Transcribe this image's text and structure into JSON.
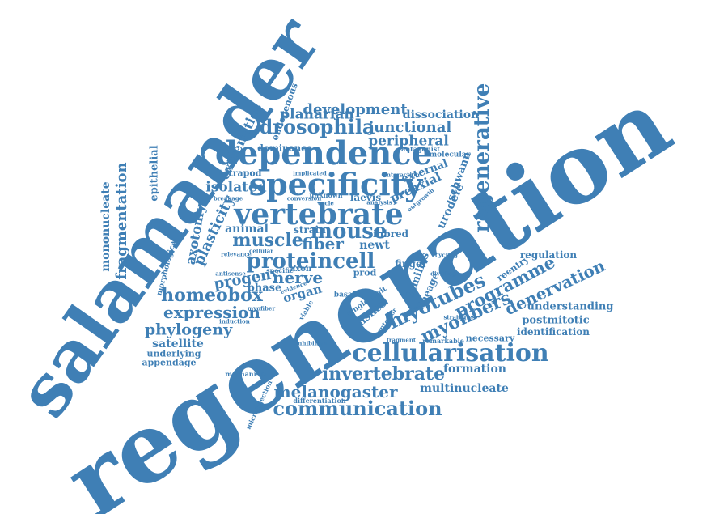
{
  "word_cloud": {
    "accent_color": "#3f7fb5",
    "words": [
      {
        "key": "regeneration",
        "text": "regeneration"
      },
      {
        "key": "salamander",
        "text": "salamander"
      },
      {
        "key": "dependence",
        "text": "dependence"
      },
      {
        "key": "specificity",
        "text": "specificity"
      },
      {
        "key": "vertebrate",
        "text": "vertebrate"
      },
      {
        "key": "cellularisation",
        "text": "cellularisation"
      },
      {
        "key": "regenerative",
        "text": "regenerative"
      },
      {
        "key": "communication",
        "text": "communication"
      },
      {
        "key": "invertebrate",
        "text": "invertebrate"
      },
      {
        "key": "melanogaster",
        "text": "melanogaster"
      },
      {
        "key": "drosophila",
        "text": "drosophila"
      },
      {
        "key": "development",
        "text": "development"
      },
      {
        "key": "planarian",
        "text": "planarian"
      },
      {
        "key": "junctional",
        "text": "junctional"
      },
      {
        "key": "dissociation",
        "text": "dissociation"
      },
      {
        "key": "peripheral",
        "text": "peripheral"
      },
      {
        "key": "mouse",
        "text": "mouse"
      },
      {
        "key": "muscle",
        "text": "muscle"
      },
      {
        "key": "fiber",
        "text": "fiber"
      },
      {
        "key": "proteincell",
        "text": "proteincell"
      },
      {
        "key": "nerve",
        "text": "nerve"
      },
      {
        "key": "homeobox",
        "text": "homeobox"
      },
      {
        "key": "expression",
        "text": "expression"
      },
      {
        "key": "phylogeny",
        "text": "phylogeny"
      },
      {
        "key": "satellite",
        "text": "satellite"
      },
      {
        "key": "underlying",
        "text": "underlying"
      },
      {
        "key": "appendage",
        "text": "appendage"
      },
      {
        "key": "progeny",
        "text": "progeny"
      },
      {
        "key": "plasticity",
        "text": "plasticity"
      },
      {
        "key": "axotomy",
        "text": "axotomy"
      },
      {
        "key": "extremities",
        "text": "extremities"
      },
      {
        "key": "endogenous",
        "text": "endogenous"
      },
      {
        "key": "fragmentation",
        "text": "fragmentation"
      },
      {
        "key": "mononucleate",
        "text": "mononucleate"
      },
      {
        "key": "epithelial",
        "text": "epithelial"
      },
      {
        "key": "morphological",
        "text": "morphological"
      },
      {
        "key": "myotubes",
        "text": "myotubes"
      },
      {
        "key": "myofibers",
        "text": "myofibers"
      },
      {
        "key": "programme",
        "text": "programme"
      },
      {
        "key": "denervation",
        "text": "denervation"
      },
      {
        "key": "understanding",
        "text": "understanding"
      },
      {
        "key": "postmitotic",
        "text": "postmitotic"
      },
      {
        "key": "identification",
        "text": "identification"
      },
      {
        "key": "regulation",
        "text": "regulation"
      },
      {
        "key": "reentry",
        "text": "reentry"
      },
      {
        "key": "formation",
        "text": "formation"
      },
      {
        "key": "multinucleate",
        "text": "multinucleate"
      },
      {
        "key": "schwann",
        "text": "schwann"
      },
      {
        "key": "urodele",
        "text": "urodele"
      },
      {
        "key": "preaxial",
        "text": "preaxial"
      },
      {
        "key": "external",
        "text": "external"
      },
      {
        "key": "isolated",
        "text": "isolated"
      },
      {
        "key": "tetrapod",
        "text": "tetrapod"
      },
      {
        "key": "dominance",
        "text": "dominance"
      },
      {
        "key": "animal",
        "text": "animal"
      },
      {
        "key": "strain",
        "text": "strain"
      },
      {
        "key": "organ",
        "text": "organ"
      },
      {
        "key": "phase",
        "text": "phase"
      },
      {
        "key": "newt",
        "text": "newt"
      },
      {
        "key": "inbred",
        "text": "inbred"
      },
      {
        "key": "laevis",
        "text": "laevis"
      },
      {
        "key": "finger",
        "text": "finger"
      },
      {
        "key": "families",
        "text": "families"
      },
      {
        "key": "lineage",
        "text": "lineage"
      },
      {
        "key": "fishes",
        "text": "fishes"
      },
      {
        "key": "single_digit",
        "text": "single digit"
      },
      {
        "key": "necessary",
        "text": "necessary"
      },
      {
        "key": "remarkable",
        "text": "remarkable"
      },
      {
        "key": "differentiation",
        "text": "differentiation"
      },
      {
        "key": "microinjection",
        "text": "microinjection"
      },
      {
        "key": "mechanism",
        "text": "mechanism"
      },
      {
        "key": "molecular",
        "text": "molecular"
      },
      {
        "key": "antagonist",
        "text": "antagonist"
      },
      {
        "key": "interaction",
        "text": "interaction"
      },
      {
        "key": "implicated",
        "text": "implicated"
      },
      {
        "key": "unknown",
        "text": "unknown"
      },
      {
        "key": "breakage",
        "text": "breakage"
      },
      {
        "key": "conversion",
        "text": "conversion"
      },
      {
        "key": "cycle",
        "text": "cycle"
      },
      {
        "key": "relevance",
        "text": "relevance"
      },
      {
        "key": "cellular",
        "text": "cellular"
      },
      {
        "key": "specific",
        "text": "specific"
      },
      {
        "key": "axon",
        "text": "axon"
      },
      {
        "key": "antisense",
        "text": "antisense"
      },
      {
        "key": "evidence",
        "text": "evidence"
      },
      {
        "key": "viable",
        "text": "viable"
      },
      {
        "key": "myofiber",
        "text": "myofiber"
      },
      {
        "key": "induction",
        "text": "induction"
      },
      {
        "key": "basal",
        "text": "basal"
      },
      {
        "key": "prod",
        "text": "prod"
      },
      {
        "key": "anterior",
        "text": "anterior"
      },
      {
        "key": "strategies",
        "text": "strategies"
      },
      {
        "key": "inhibition",
        "text": "inhibition"
      },
      {
        "key": "fragment",
        "text": "fragment"
      },
      {
        "key": "dividing",
        "text": "dividing"
      },
      {
        "key": "cycling",
        "text": "cycling"
      },
      {
        "key": "outgrowth",
        "text": "outgrowth"
      },
      {
        "key": "analysis",
        "text": "analysis"
      }
    ]
  }
}
